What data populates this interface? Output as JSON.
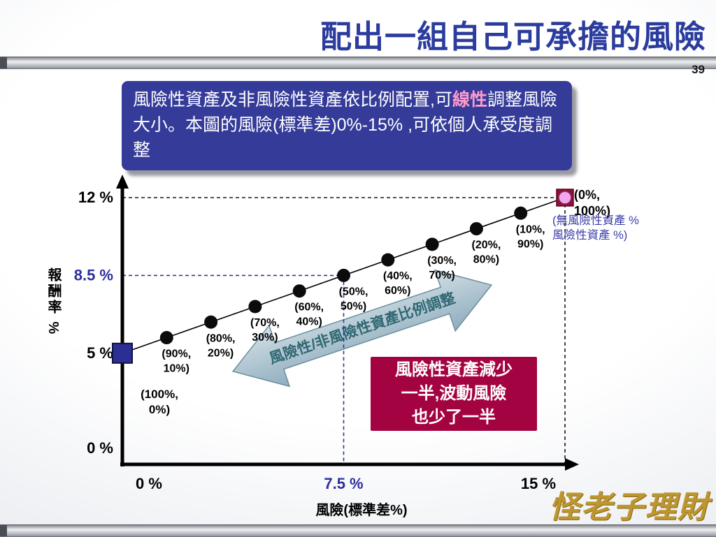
{
  "slide": {
    "title": "配出一組自己可承擔的風險",
    "page_number": "39",
    "logo_text": "怪老子理財"
  },
  "info_box": {
    "pre": "風險性資產及非風險性資產依比例配置,可",
    "highlight": "線性",
    "post": "調整風險大小。本圖的風險(標準差)0%-15% ,可依個人承受度調整"
  },
  "callout": {
    "lines": [
      "風險性資產減少",
      "一半,波動風險",
      "也少了一半"
    ]
  },
  "annotations": {
    "arrow_label": "風險性/非風險性資產比例調整"
  },
  "chart_data": {
    "type": "line",
    "title": "",
    "xlabel": "風險(標準差%)",
    "ylabel": "報酬率 %",
    "xlim": [
      0,
      15
    ],
    "ylim": [
      0,
      12
    ],
    "grid": false,
    "legend_note": [
      "(無風險性資產 %",
      "風險性資產  %)"
    ],
    "x_ticks": [
      {
        "value": 0,
        "label": "0 %",
        "highlight": false
      },
      {
        "value": 7.5,
        "label": "7.5 %",
        "highlight": true
      },
      {
        "value": 15,
        "label": "15 %",
        "highlight": false
      }
    ],
    "y_ticks": [
      {
        "value": 12,
        "label": "12 %",
        "highlight": false
      },
      {
        "value": 8.5,
        "label": "8.5 %",
        "highlight": true
      },
      {
        "value": 5,
        "label": "5 %",
        "highlight": false
      },
      {
        "value": 0,
        "label": "0 %",
        "highlight": false
      }
    ],
    "points": [
      {
        "riskfree_pct": 100,
        "risky_pct": 0,
        "risk": 0,
        "return": 5,
        "label": "(100%, 0%)",
        "marker": "square"
      },
      {
        "riskfree_pct": 90,
        "risky_pct": 10,
        "risk": 1.5,
        "return": 5.7,
        "label": "(90%, 10%)",
        "marker": "dot"
      },
      {
        "riskfree_pct": 80,
        "risky_pct": 20,
        "risk": 3,
        "return": 6.4,
        "label": "(80%, 20%)",
        "marker": "dot"
      },
      {
        "riskfree_pct": 70,
        "risky_pct": 30,
        "risk": 4.5,
        "return": 7.1,
        "label": "(70%, 30%)",
        "marker": "dot"
      },
      {
        "riskfree_pct": 60,
        "risky_pct": 40,
        "risk": 6,
        "return": 7.8,
        "label": "(60%, 40%)",
        "marker": "dot"
      },
      {
        "riskfree_pct": 50,
        "risky_pct": 50,
        "risk": 7.5,
        "return": 8.5,
        "label": "(50%, 50%)",
        "marker": "dot"
      },
      {
        "riskfree_pct": 40,
        "risky_pct": 60,
        "risk": 9,
        "return": 9.2,
        "label": "(40%, 60%)",
        "marker": "dot"
      },
      {
        "riskfree_pct": 30,
        "risky_pct": 70,
        "risk": 10.5,
        "return": 9.9,
        "label": "(30%, 70%)",
        "marker": "dot"
      },
      {
        "riskfree_pct": 20,
        "risky_pct": 80,
        "risk": 12,
        "return": 10.6,
        "label": "(20%, 80%)",
        "marker": "dot"
      },
      {
        "riskfree_pct": 10,
        "risky_pct": 90,
        "risk": 13.5,
        "return": 11.3,
        "label": "(10%, 90%)",
        "marker": "dot"
      },
      {
        "riskfree_pct": 0,
        "risky_pct": 100,
        "risk": 15,
        "return": 12,
        "label": "(0%, 100%)",
        "marker": "circle-pink"
      }
    ],
    "dashed_guides": [
      {
        "x": 15,
        "y": 12,
        "color": "black"
      },
      {
        "x": 7.5,
        "y": 8.5,
        "color": "blue"
      }
    ],
    "colors": {
      "accent_blue": "#2c2e9c",
      "info_box_bg": "#343b98",
      "highlight_pink": "#ff9acd",
      "callout_bg": "#a40341",
      "riskfree_marker": "#2b2f93",
      "risky_marker_bg": "#8f1030",
      "risky_marker_circle": "#f3a6ec",
      "arrow_fill": "#a9c2cf",
      "arrow_text": "#2f6872",
      "logo_gold": "#bd962f"
    }
  }
}
